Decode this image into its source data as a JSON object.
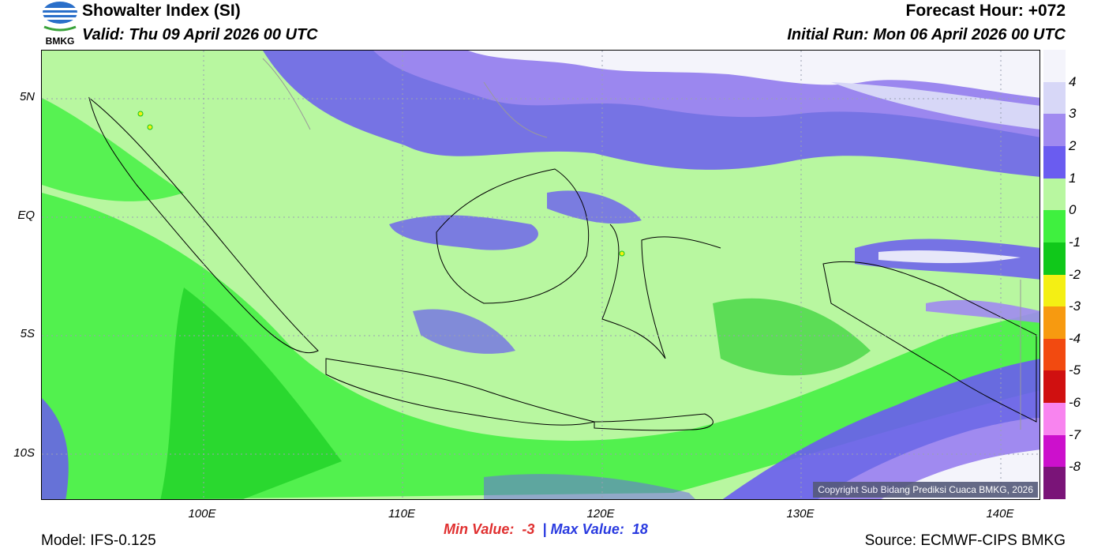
{
  "header": {
    "title": "Showalter Index (SI)",
    "valid": "Valid: Thu 09 April 2026 00 UTC",
    "forecast_hour": "Forecast Hour: +072",
    "initial_run": "Initial Run: Mon 06 April 2026 00 UTC"
  },
  "logo": {
    "text": "BMKG"
  },
  "map": {
    "lat_labels": [
      "5N",
      "EQ",
      "5S",
      "10S"
    ],
    "lon_labels": [
      "100E",
      "110E",
      "120E",
      "130E",
      "140E"
    ],
    "copyright": "Copyright Sub Bidang Prediksi Cuaca BMKG, 2026"
  },
  "colorbar": {
    "labels": [
      "4",
      "3",
      "2",
      "1",
      "0",
      "-1",
      "-2",
      "-3",
      "-4",
      "-5",
      "-6",
      "-7",
      "-8"
    ],
    "colors": [
      "#f4f4fb",
      "#d7d7f7",
      "#a08af0",
      "#6a5cf0",
      "#b8f7a0",
      "#3ff03f",
      "#10c81a",
      "#f4ef14",
      "#f79a10",
      "#f24a10",
      "#d01010",
      "#f884ef",
      "#cc10cc",
      "#7a1478"
    ]
  },
  "stats": {
    "min_label": "Min Value:",
    "min_value": "-3",
    "separator": "|",
    "max_label": "Max Value:",
    "max_value": "18"
  },
  "footer": {
    "model": "Model: IFS-0.125",
    "source": "Source: ECMWF-CIPS BMKG"
  }
}
